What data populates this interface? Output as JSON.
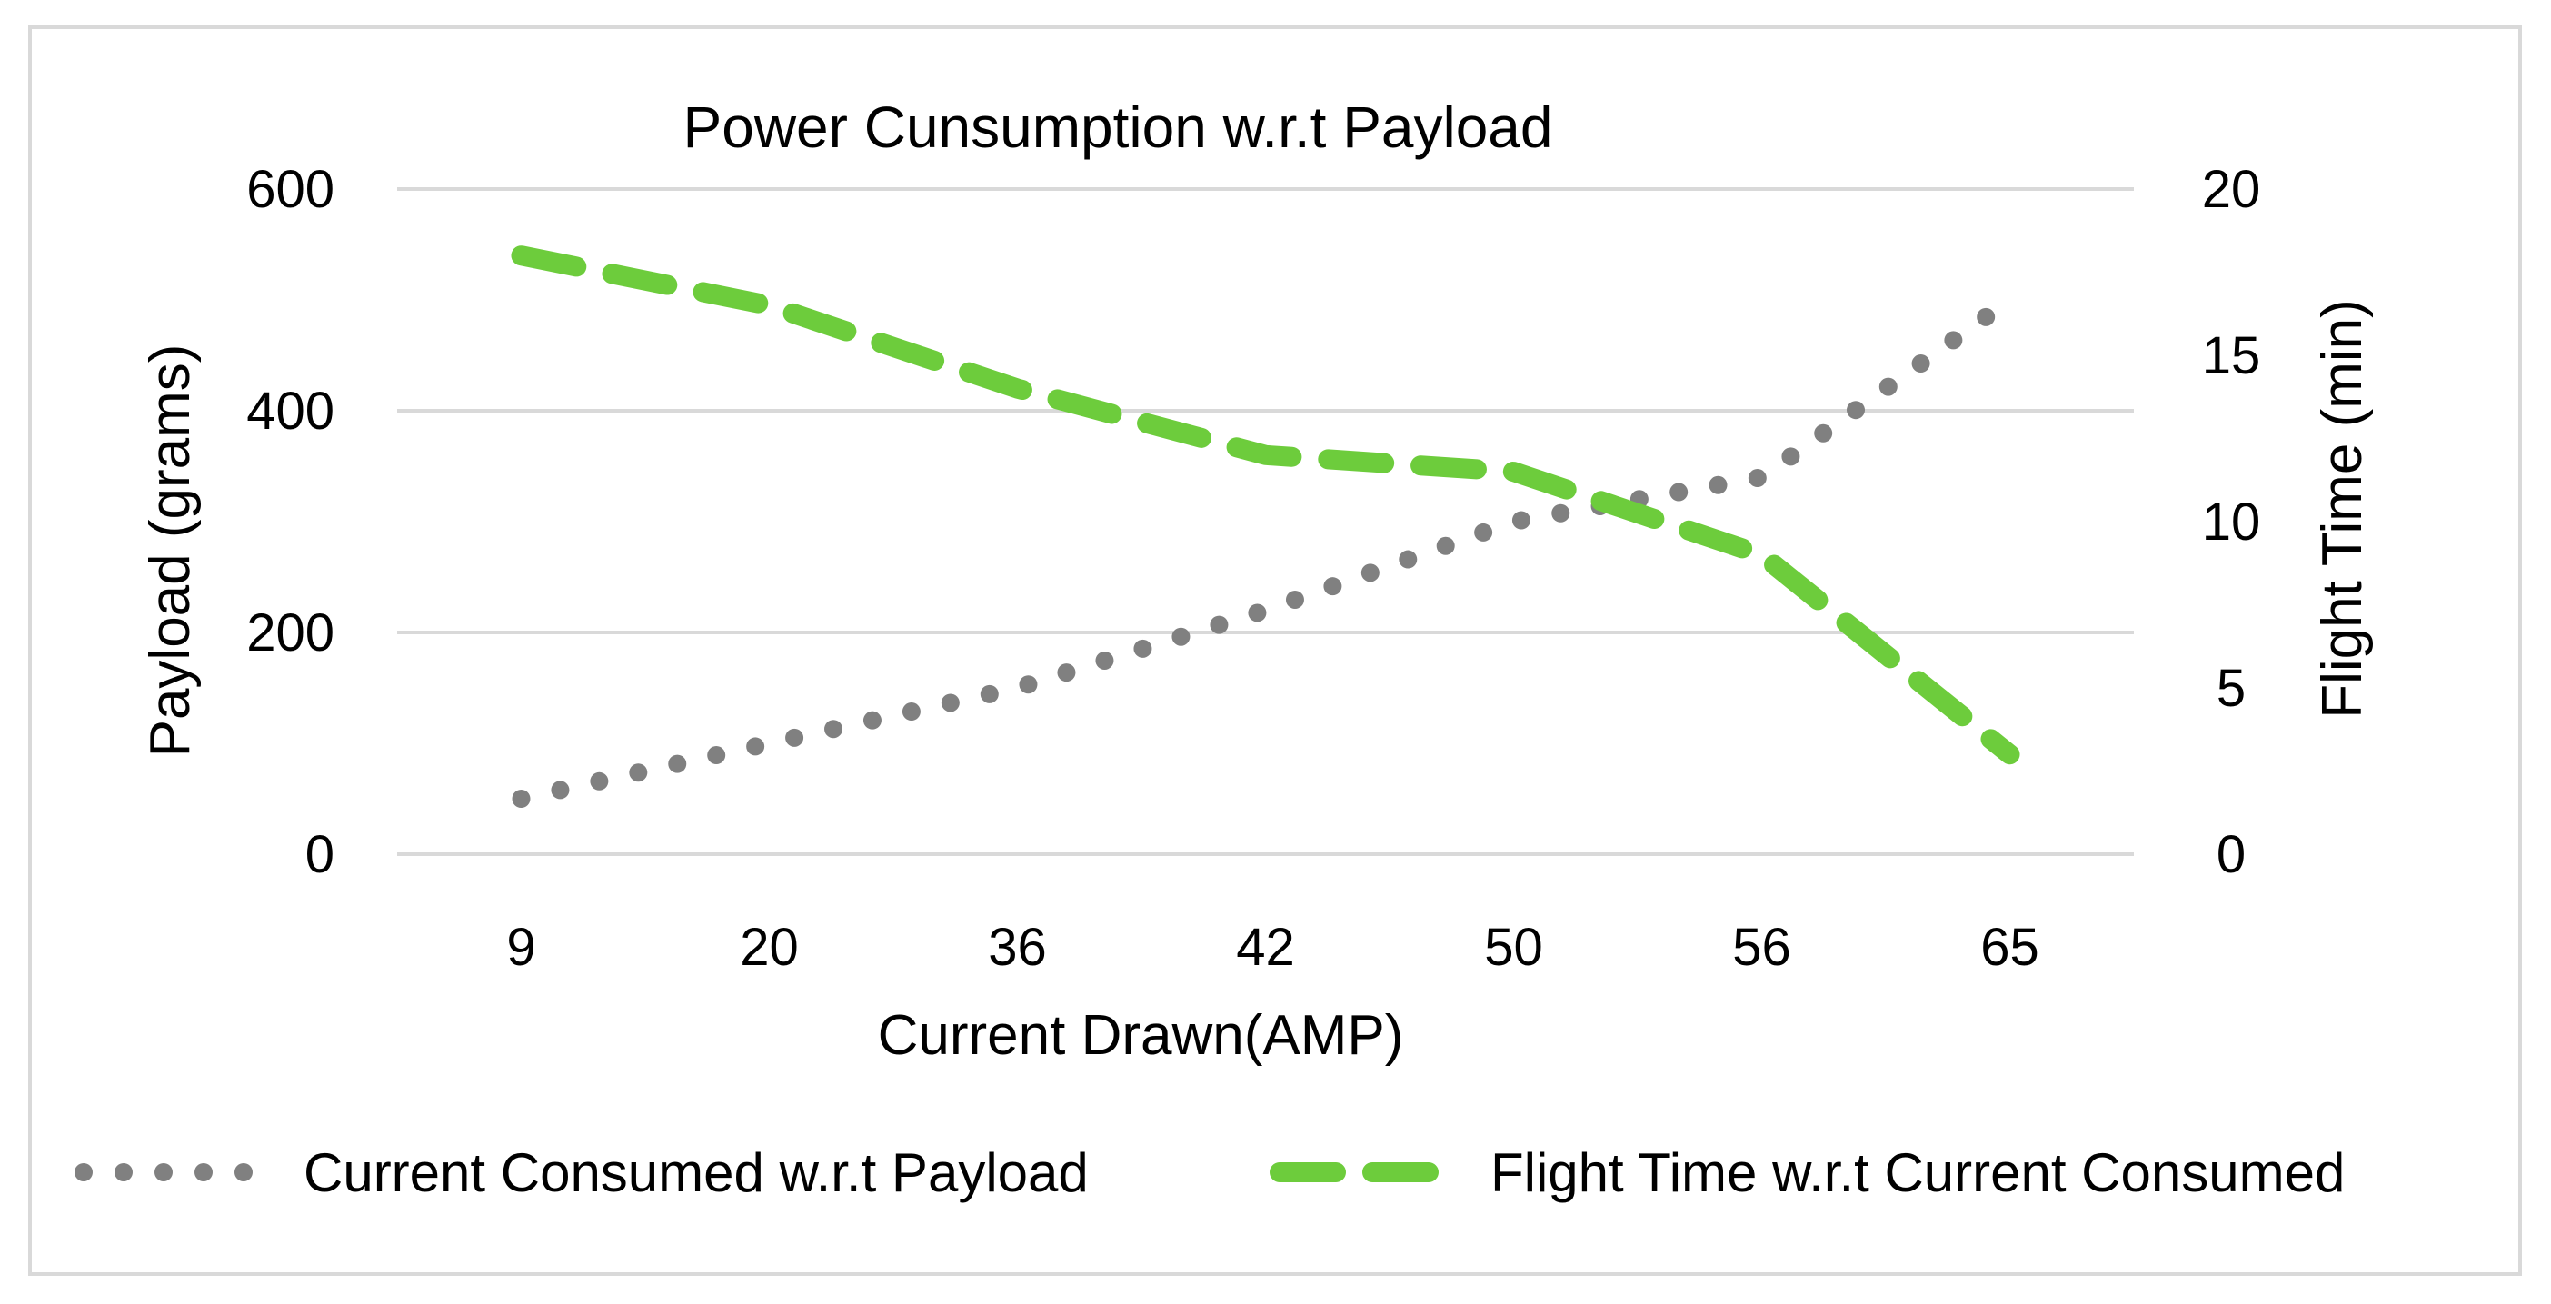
{
  "chart_data": {
    "type": "line",
    "title": "Power Cunsumption w.r.t Payload",
    "xlabel": "Current Drawn(AMP)",
    "ylabel": "Payload (grams)",
    "y2label": "Flight Time (min)",
    "categories": [
      "9",
      "20",
      "36",
      "42",
      "50",
      "56",
      "65"
    ],
    "ylim": [
      0,
      600
    ],
    "y2lim": [
      0,
      20
    ],
    "yticks": [
      "0",
      "200",
      "400",
      "600"
    ],
    "y2ticks": [
      "0",
      "5",
      "10",
      "15",
      "20"
    ],
    "grid": true,
    "legend_position": "bottom",
    "series": [
      {
        "name": "Current Consumed w.r.t Payload",
        "axis": "left",
        "style": "dotted",
        "color": "#808080",
        "values": [
          50,
          100,
          150,
          220,
          300,
          340,
          500
        ]
      },
      {
        "name": "Flight Time w.r.t Current Consumed",
        "axis": "right",
        "style": "dashed",
        "color": "#6DCC3C",
        "values": [
          18,
          16.5,
          14,
          12,
          11.5,
          9,
          3
        ]
      }
    ]
  }
}
